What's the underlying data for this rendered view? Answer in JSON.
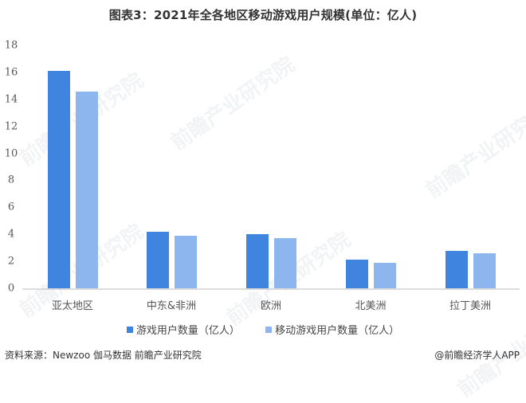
{
  "title": "图表3：2021年全各地区移动游戏用户规模(单位：亿人)",
  "colors": {
    "series1": "#3f84de",
    "series2": "#8db6ef",
    "axis": "#dcdcdc"
  },
  "y_ticks": [
    "0",
    "2",
    "4",
    "6",
    "8",
    "10",
    "12",
    "14",
    "16",
    "18"
  ],
  "legend": [
    {
      "label": "游戏用户数量（亿人）"
    },
    {
      "label": "移动游戏用户数量（亿人）"
    }
  ],
  "footer": {
    "source": "资料来源：Newzoo 伽马数据 前瞻产业研究院",
    "credit": "@前瞻经济学人APP"
  },
  "watermark": "前瞻产业研究院",
  "chart_data": {
    "type": "bar",
    "title": "图表3：2021年全各地区移动游戏用户规模(单位：亿人)",
    "categories": [
      "亚太地区",
      "中东&非洲",
      "欧洲",
      "北美洲",
      "拉丁美洲"
    ],
    "series": [
      {
        "name": "游戏用户数量（亿人）",
        "values": [
          16.1,
          4.2,
          4.0,
          2.1,
          2.8
        ]
      },
      {
        "name": "移动游戏用户数量（亿人）",
        "values": [
          14.6,
          3.9,
          3.7,
          1.9,
          2.6
        ]
      }
    ],
    "xlabel": "",
    "ylabel": "",
    "ylim": [
      0,
      18
    ],
    "y_tick_step": 2,
    "grid": false,
    "legend_position": "bottom"
  }
}
